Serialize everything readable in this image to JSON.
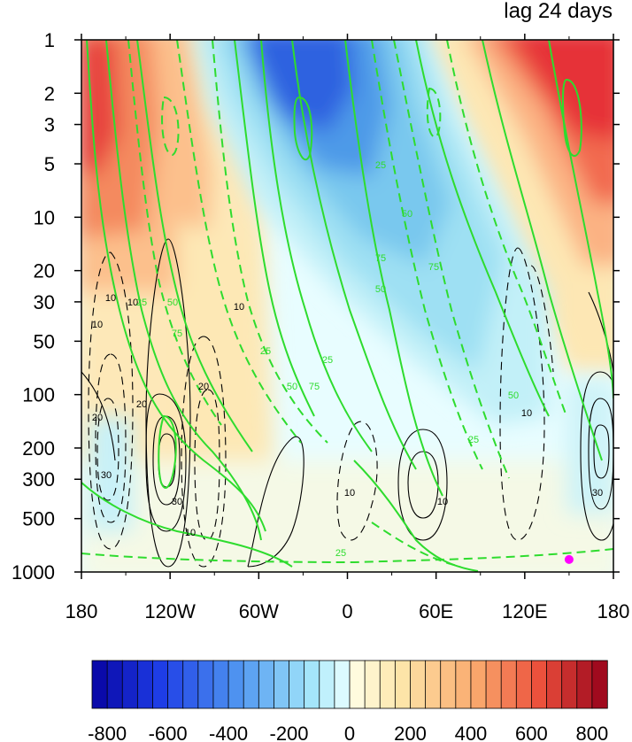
{
  "chart_data": {
    "type": "heatmap",
    "title": "lag 24 days",
    "x_ticks": [
      {
        "value": -180,
        "label": "180"
      },
      {
        "value": -120,
        "label": "120W"
      },
      {
        "value": -60,
        "label": "60W"
      },
      {
        "value": 0,
        "label": "0"
      },
      {
        "value": 60,
        "label": "60E"
      },
      {
        "value": 120,
        "label": "120E"
      },
      {
        "value": 180,
        "label": "180"
      }
    ],
    "xlim": [
      -180,
      180
    ],
    "y_scale": "log",
    "y_direction": "inverted",
    "ylim": [
      1000,
      1
    ],
    "y_ticks": [
      1,
      2,
      3,
      5,
      10,
      20,
      30,
      50,
      100,
      200,
      300,
      500,
      1000
    ],
    "colorbar": {
      "min": -800,
      "max": 800,
      "step": 50,
      "tick_labels": [
        "-800",
        "-600",
        "-400",
        "-200",
        "0",
        "200",
        "400",
        "600",
        "800"
      ],
      "colormap": "blue-white-red"
    },
    "shading_features": [
      {
        "sign": "positive",
        "lon": -170,
        "p": 3,
        "value": 650
      },
      {
        "sign": "negative",
        "lon": -30,
        "p": 3,
        "value": -700
      },
      {
        "sign": "negative",
        "lon": 20,
        "p": 30,
        "value": -350
      },
      {
        "sign": "positive",
        "lon": 150,
        "p": 2,
        "value": 700
      },
      {
        "sign": "positive",
        "lon": -100,
        "p": 100,
        "value": 150
      }
    ],
    "black_contour_labels": [
      "10",
      "10",
      "10",
      "20",
      "20",
      "20",
      "30",
      "30",
      "10",
      "10",
      "10",
      "10",
      "30",
      "10"
    ],
    "green_contour_labels": [
      "25",
      "50",
      "75",
      "25",
      "50",
      "75",
      "25",
      "50",
      "75",
      "25",
      "50",
      "75",
      "25",
      "50",
      "25"
    ],
    "marker": {
      "lon": 150,
      "p": 850,
      "color": "#ff00ff"
    }
  }
}
